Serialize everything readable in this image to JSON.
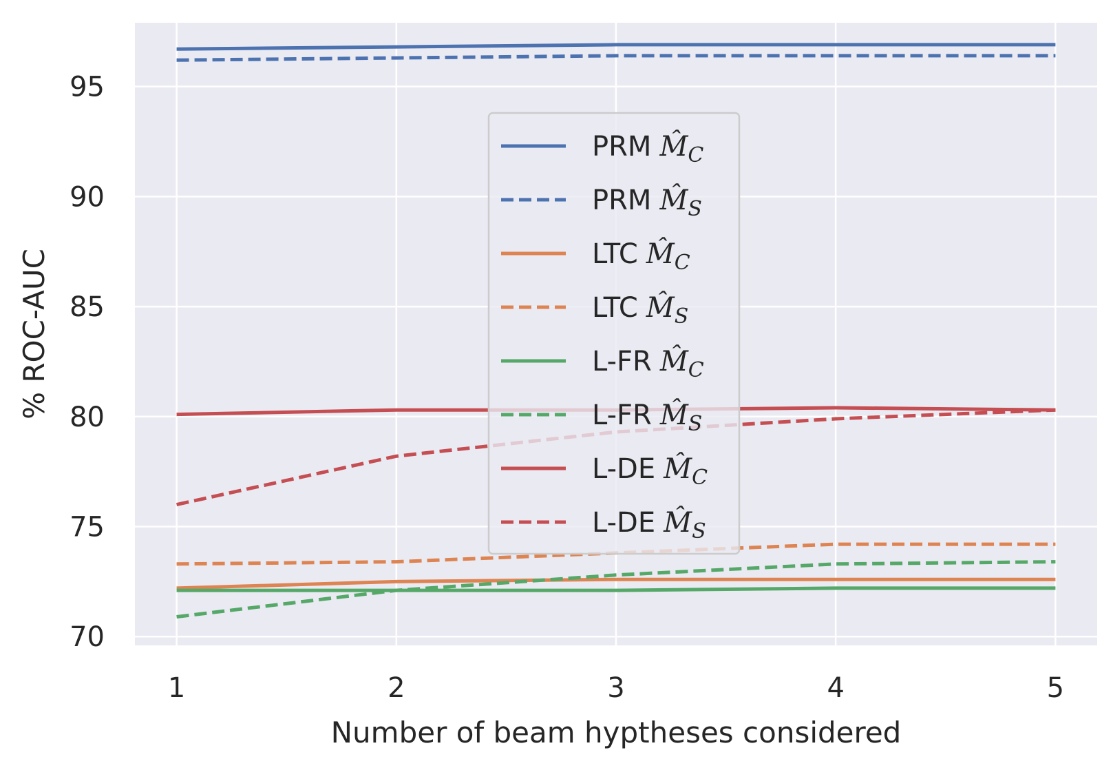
{
  "chart_data": {
    "type": "line",
    "title": "",
    "xlabel": "Number of beam hyptheses considered",
    "ylabel": "% ROC-AUC",
    "x": [
      1,
      2,
      3,
      4,
      5
    ],
    "xlim": [
      0.81,
      5.19
    ],
    "ylim": [
      69.6,
      97.9
    ],
    "xticks": [
      "1",
      "2",
      "3",
      "4",
      "5"
    ],
    "yticks": [
      "70",
      "75",
      "80",
      "85",
      "90",
      "95"
    ],
    "grid": true,
    "legend_position": "center",
    "series": [
      {
        "name": "PRM",
        "subscript": "C",
        "color": "#4c72b0",
        "style": "solid",
        "values": [
          96.7,
          96.8,
          96.9,
          96.9,
          96.9
        ]
      },
      {
        "name": "PRM",
        "subscript": "S",
        "color": "#4c72b0",
        "style": "dashed",
        "values": [
          96.2,
          96.3,
          96.4,
          96.4,
          96.4
        ]
      },
      {
        "name": "LTC",
        "subscript": "C",
        "color": "#dd8452",
        "style": "solid",
        "values": [
          72.2,
          72.5,
          72.6,
          72.6,
          72.6
        ]
      },
      {
        "name": "LTC",
        "subscript": "S",
        "color": "#dd8452",
        "style": "dashed",
        "values": [
          73.3,
          73.4,
          73.8,
          74.2,
          74.2
        ]
      },
      {
        "name": "L-FR",
        "subscript": "C",
        "color": "#55a868",
        "style": "solid",
        "values": [
          72.1,
          72.1,
          72.1,
          72.2,
          72.2
        ]
      },
      {
        "name": "L-FR",
        "subscript": "S",
        "color": "#55a868",
        "style": "dashed",
        "values": [
          70.9,
          72.1,
          72.8,
          73.3,
          73.4
        ]
      },
      {
        "name": "L-DE",
        "subscript": "C",
        "color": "#c44e52",
        "style": "solid",
        "values": [
          80.1,
          80.3,
          80.3,
          80.4,
          80.3
        ]
      },
      {
        "name": "L-DE",
        "subscript": "S",
        "color": "#c44e52",
        "style": "dashed",
        "values": [
          76.0,
          78.2,
          79.3,
          79.9,
          80.3
        ]
      }
    ]
  }
}
